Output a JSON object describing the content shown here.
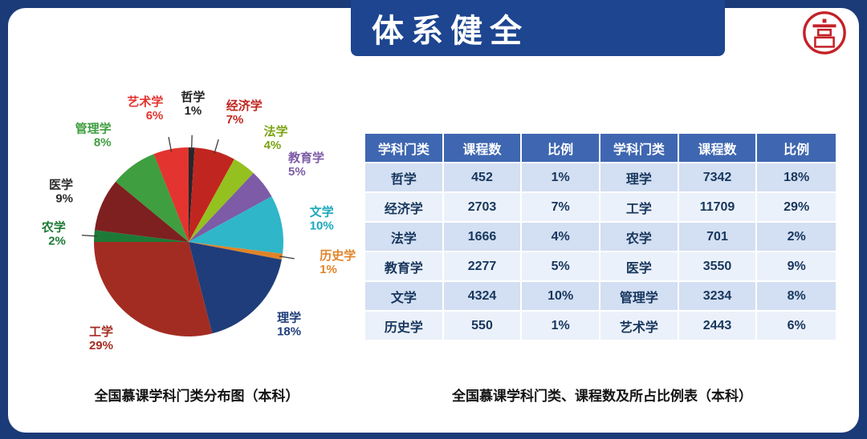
{
  "slide": {
    "title": "体系健全",
    "pie_caption": "全国慕课学科门类分布图（本科）",
    "table_caption": "全国慕课学科门类、课程数及所占比例表（本科）"
  },
  "colors": {
    "frame": "#1b3a78",
    "banner": "#1d4590",
    "header_bg": "#3f67b1",
    "row_odd": "#d3dff2",
    "row_even": "#ebf1fa",
    "cell_text": "#17365d",
    "caption_text": "#141414",
    "logo_red": "#c42127"
  },
  "chart_data": {
    "type": "pie",
    "title": "全国慕课学科门类分布图（本科）",
    "legend_position": "none",
    "slices": [
      {
        "label": "哲学",
        "pct": 1,
        "color": "#26262b",
        "label_color": "#1f1f1f"
      },
      {
        "label": "经济学",
        "pct": 7,
        "color": "#c0261f",
        "label_color": "#c0261f"
      },
      {
        "label": "法学",
        "pct": 4,
        "color": "#94c11f",
        "label_color": "#7aa312"
      },
      {
        "label": "教育学",
        "pct": 5,
        "color": "#7d5ba6",
        "label_color": "#7d5ba6"
      },
      {
        "label": "文学",
        "pct": 10,
        "color": "#2fb6c9",
        "label_color": "#1ba8bc"
      },
      {
        "label": "历史学",
        "pct": 1,
        "color": "#e0842a",
        "label_color": "#e0842a"
      },
      {
        "label": "理学",
        "pct": 18,
        "color": "#1f3d7a",
        "label_color": "#1f3d7a"
      },
      {
        "label": "工学",
        "pct": 29,
        "color": "#a32c22",
        "label_color": "#a32c22"
      },
      {
        "label": "农学",
        "pct": 2,
        "color": "#1d7a36",
        "label_color": "#1d7a36"
      },
      {
        "label": "医学",
        "pct": 9,
        "color": "#7e2020",
        "label_color": "#2a2a2a"
      },
      {
        "label": "管理学",
        "pct": 8,
        "color": "#3f9e3f",
        "label_color": "#3f9e3f"
      },
      {
        "label": "艺术学",
        "pct": 6,
        "color": "#e3342f",
        "label_color": "#e3342f"
      }
    ]
  },
  "table": {
    "headers": [
      "学科门类",
      "课程数",
      "比例",
      "学科门类",
      "课程数",
      "比例"
    ],
    "rows": [
      [
        "哲学",
        "452",
        "1%",
        "理学",
        "7342",
        "18%"
      ],
      [
        "经济学",
        "2703",
        "7%",
        "工学",
        "11709",
        "29%"
      ],
      [
        "法学",
        "1666",
        "4%",
        "农学",
        "701",
        "2%"
      ],
      [
        "教育学",
        "2277",
        "5%",
        "医学",
        "3550",
        "9%"
      ],
      [
        "文学",
        "4324",
        "10%",
        "管理学",
        "3234",
        "8%"
      ],
      [
        "历史学",
        "550",
        "1%",
        "艺术学",
        "2443",
        "6%"
      ]
    ]
  }
}
